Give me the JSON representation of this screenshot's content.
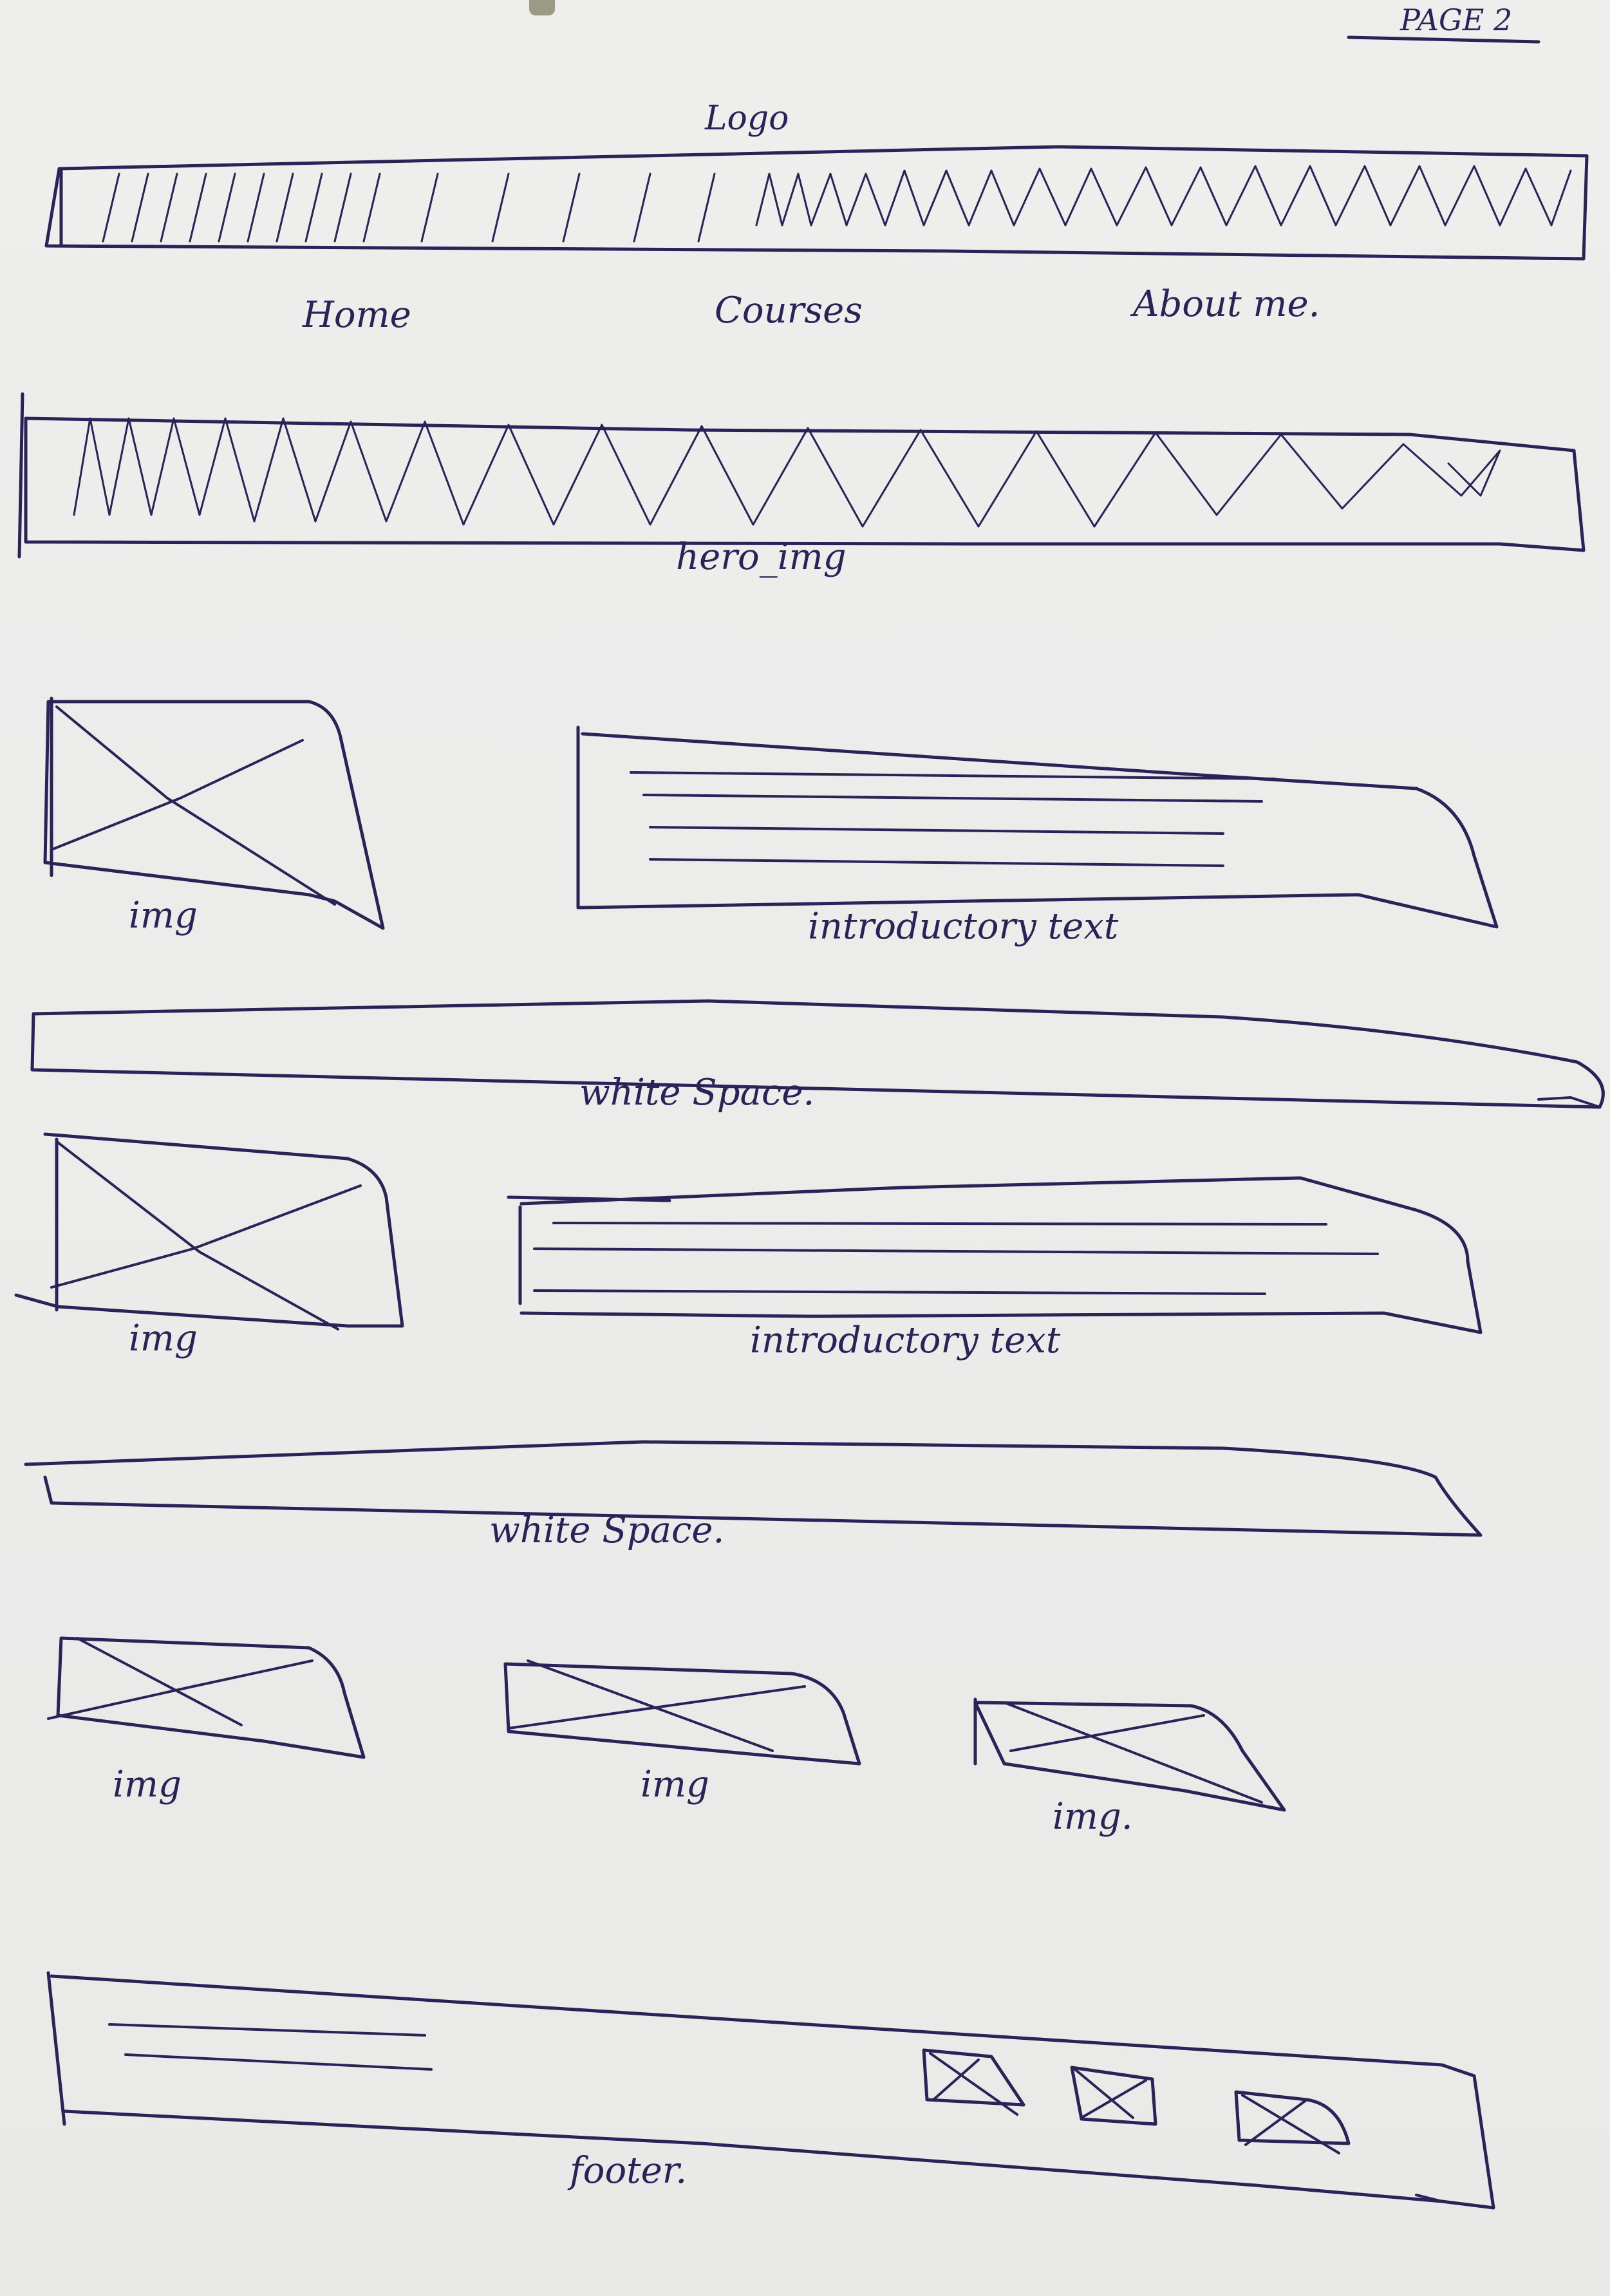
{
  "page_label": "PAGE 2",
  "header": {
    "logo": "Logo"
  },
  "nav": {
    "home": "Home",
    "courses": "Courses",
    "about": "About me."
  },
  "hero": {
    "label": "hero_img"
  },
  "section1": {
    "img": "img",
    "text": "introductory text"
  },
  "spacer1": {
    "label": "white Space."
  },
  "section2": {
    "img": "img",
    "text": "introductory text"
  },
  "spacer2": {
    "label": "white Space."
  },
  "gallery": {
    "images": [
      "img",
      "img",
      "img."
    ]
  },
  "footer": {
    "label": "footer."
  },
  "colors": {
    "ink": "#2b2257",
    "paper": "#ececeb"
  }
}
